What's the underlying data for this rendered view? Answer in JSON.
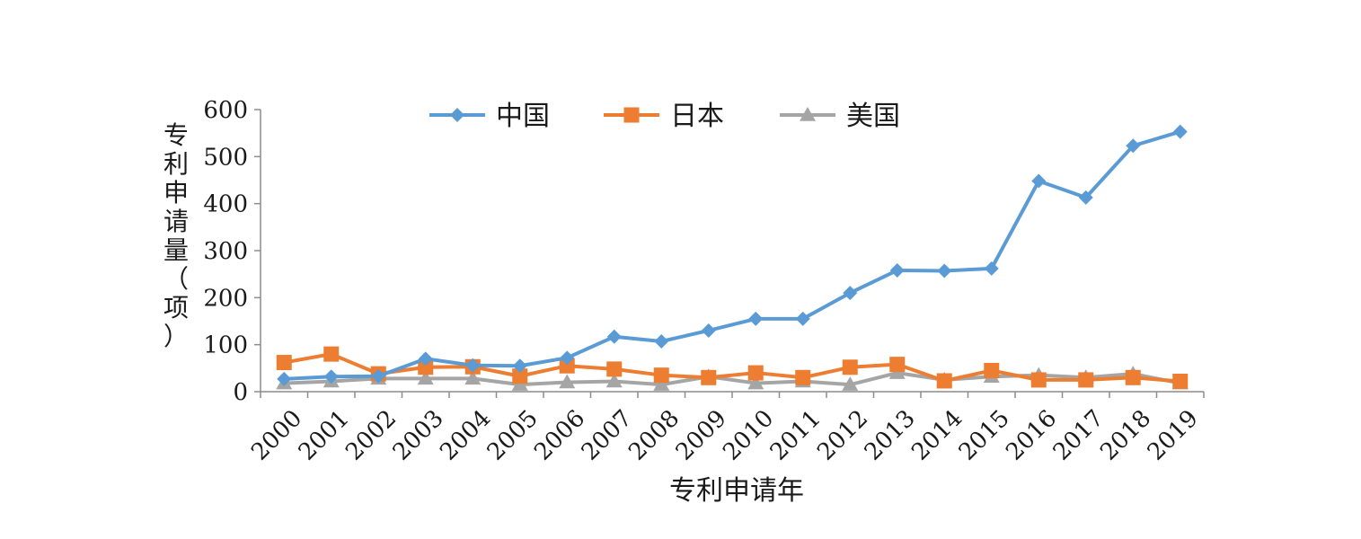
{
  "chart_data": {
    "type": "line",
    "title": "",
    "xlabel": "专利申请年",
    "ylabel": "专利申请量（项）",
    "ylim": [
      0,
      600
    ],
    "yticks": [
      0,
      100,
      200,
      300,
      400,
      500,
      600
    ],
    "grid": false,
    "legend_position": "top",
    "categories": [
      "2000",
      "2001",
      "2002",
      "2003",
      "2004",
      "2005",
      "2006",
      "2007",
      "2008",
      "2009",
      "2010",
      "2011",
      "2012",
      "2013",
      "2014",
      "2015",
      "2016",
      "2017",
      "2018",
      "2019"
    ],
    "series": [
      {
        "name": "中国",
        "color": "#5b9bd5",
        "marker": "diamond",
        "values": [
          27,
          32,
          33,
          70,
          56,
          55,
          72,
          117,
          107,
          130,
          155,
          155,
          210,
          258,
          257,
          262,
          448,
          413,
          523,
          553
        ]
      },
      {
        "name": "日本",
        "color": "#ed7d31",
        "marker": "square",
        "values": [
          62,
          80,
          38,
          52,
          53,
          33,
          55,
          48,
          35,
          30,
          40,
          30,
          52,
          58,
          23,
          45,
          25,
          25,
          30,
          22
        ]
      },
      {
        "name": "美国",
        "color": "#a5a5a5",
        "marker": "triangle",
        "values": [
          18,
          22,
          28,
          28,
          28,
          15,
          20,
          22,
          15,
          32,
          18,
          22,
          15,
          40,
          25,
          32,
          35,
          30,
          38,
          18
        ]
      }
    ]
  }
}
